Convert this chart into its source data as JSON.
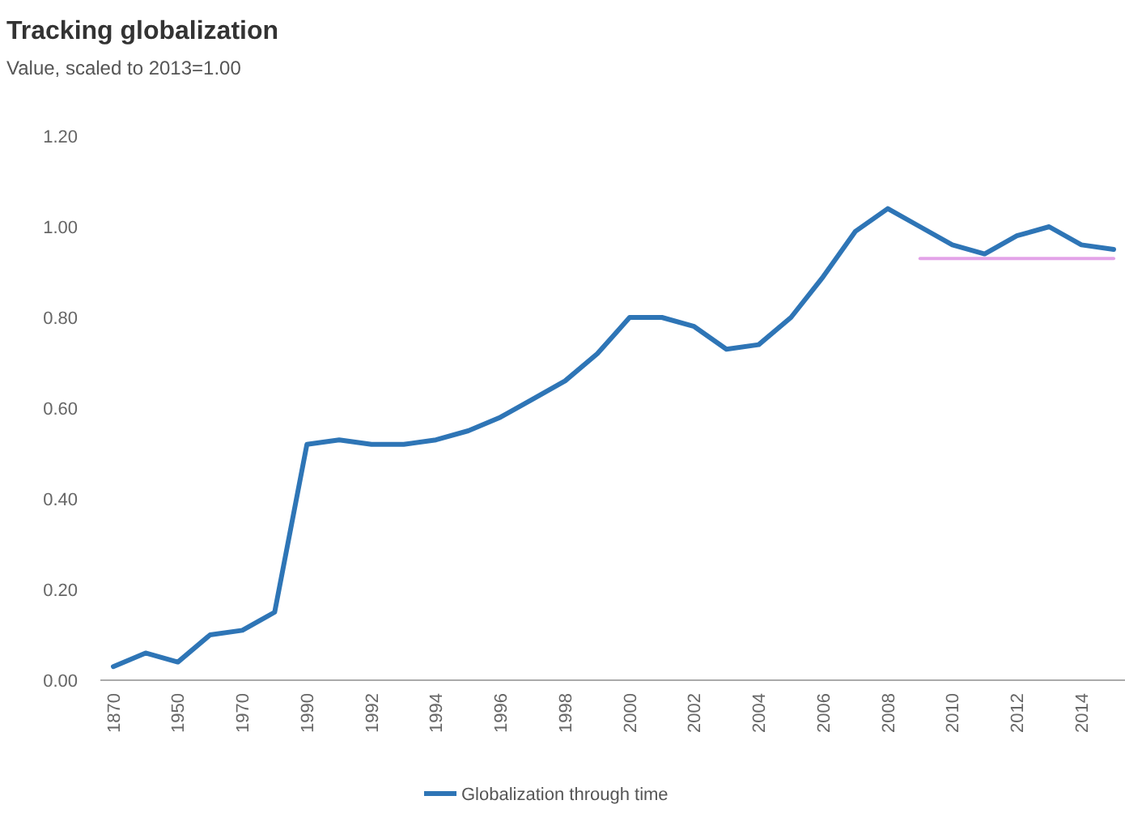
{
  "chart_data": {
    "type": "line",
    "title": "Tracking globalization",
    "subtitle": "Value, scaled to 2013=1.00",
    "categories": [
      "1870",
      null,
      "1950",
      null,
      "1970",
      null,
      "1990",
      null,
      "1992",
      null,
      "1994",
      null,
      "1996",
      null,
      "1998",
      null,
      "2000",
      null,
      "2002",
      null,
      "2004",
      null,
      "2006",
      null,
      "2008",
      null,
      "2010",
      null,
      "2012",
      null,
      "2014",
      null
    ],
    "series": [
      {
        "name": "Globalization through time",
        "color": "#2e75b6",
        "values": [
          0.03,
          0.06,
          0.04,
          0.1,
          0.11,
          0.15,
          0.52,
          0.53,
          0.52,
          0.52,
          0.53,
          0.55,
          0.58,
          0.62,
          0.66,
          0.72,
          0.8,
          0.8,
          0.78,
          0.73,
          0.74,
          0.8,
          0.89,
          0.99,
          1.04,
          1.0,
          0.96,
          0.94,
          0.98,
          1.0,
          0.96,
          0.95
        ]
      },
      {
        "color": "#e3a3e8",
        "values": [
          null,
          null,
          null,
          null,
          null,
          null,
          null,
          null,
          null,
          null,
          null,
          null,
          null,
          null,
          null,
          null,
          null,
          null,
          null,
          null,
          null,
          null,
          null,
          null,
          null,
          0.93,
          0.93,
          0.93,
          0.93,
          0.93,
          0.93,
          0.93
        ]
      }
    ],
    "ylim": [
      0,
      1.2
    ],
    "yticks": [
      {
        "value": 0,
        "label": "0.00"
      },
      {
        "value": 0.2,
        "label": "0.20"
      },
      {
        "value": 0.4,
        "label": "0.40"
      },
      {
        "value": 0.6,
        "label": "0.60"
      },
      {
        "value": 0.8,
        "label": "0.80"
      },
      {
        "value": 1,
        "label": "1.00"
      },
      {
        "value": 1.2,
        "label": "1.20"
      }
    ],
    "grid": false,
    "legend": "bottom",
    "line_style": "solid"
  }
}
